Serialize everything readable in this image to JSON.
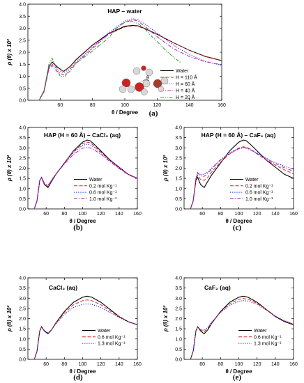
{
  "colors": {
    "water": "#000000",
    "red": "#d62728",
    "blue": "#1f1fd6",
    "magenta": "#b31fb3",
    "green": "#2a9a2a"
  },
  "chart_data": [
    {
      "panel": "(a)",
      "type": "line",
      "title": "HAP – water",
      "xlabel": "θ / Degree",
      "ylabel": "ρ (θ) x 10²",
      "xlim": [
        40,
        160
      ],
      "ylim": [
        0,
        4.0
      ],
      "xticks": [
        "60",
        "80",
        "100",
        "120",
        "140",
        "160"
      ],
      "yticks": [
        "0.0",
        "0.5",
        "1.0",
        "1.5",
        "2.0",
        "2.5",
        "3.0",
        "3.5",
        "4.0"
      ],
      "legend_position": "right",
      "inset": "water molecule image with θ angle",
      "series": [
        {
          "name": "Water",
          "color": "water",
          "dash": "solid",
          "x": [
            47,
            50,
            53,
            55,
            58,
            62,
            66,
            70,
            80,
            90,
            100,
            105,
            108,
            112,
            120,
            130,
            140,
            150,
            160
          ],
          "y": [
            0.0,
            0.4,
            1.4,
            1.6,
            1.4,
            1.2,
            1.4,
            1.7,
            2.3,
            2.78,
            3.08,
            3.12,
            3.1,
            3.0,
            2.75,
            2.4,
            2.08,
            1.82,
            1.65
          ]
        },
        {
          "name": "H = 110 Å",
          "color": "red",
          "dash": "dash",
          "x": [
            47,
            50,
            53,
            55,
            58,
            62,
            66,
            70,
            80,
            90,
            100,
            105,
            108,
            112,
            120,
            130,
            140,
            150,
            160
          ],
          "y": [
            0.0,
            0.4,
            1.4,
            1.58,
            1.38,
            1.2,
            1.38,
            1.68,
            2.28,
            2.75,
            3.05,
            3.1,
            3.08,
            2.98,
            2.74,
            2.4,
            2.08,
            1.83,
            1.66
          ]
        },
        {
          "name": "H = 60 Å",
          "color": "blue",
          "dash": "dot",
          "x": [
            47,
            50,
            53,
            55,
            58,
            62,
            66,
            70,
            80,
            90,
            100,
            105,
            108,
            112,
            120,
            130,
            140,
            150,
            160
          ],
          "y": [
            0.0,
            0.4,
            1.35,
            1.5,
            1.3,
            1.15,
            1.3,
            1.6,
            2.2,
            2.8,
            3.3,
            3.4,
            3.35,
            3.2,
            2.8,
            2.3,
            1.9,
            1.62,
            1.45
          ]
        },
        {
          "name": "H = 40 Å",
          "color": "magenta",
          "dash": "dashdot",
          "x": [
            47,
            50,
            53,
            55,
            58,
            62,
            66,
            70,
            80,
            90,
            100,
            105,
            108,
            112,
            120,
            130,
            140,
            150,
            160
          ],
          "y": [
            0.0,
            0.35,
            1.3,
            1.45,
            1.2,
            1.05,
            1.2,
            1.55,
            2.15,
            2.75,
            3.25,
            3.35,
            3.3,
            3.1,
            2.65,
            2.15,
            1.82,
            1.6,
            1.48
          ]
        },
        {
          "name": "H = 20 Å",
          "color": "green",
          "dash": "dashdotdot",
          "x": [
            47,
            50,
            53,
            55,
            57,
            60,
            63,
            66,
            70,
            80,
            90,
            95,
            100,
            104,
            108,
            112,
            116,
            120,
            125,
            130,
            135
          ],
          "y": [
            0.0,
            0.4,
            1.5,
            1.75,
            1.45,
            1.0,
            1.0,
            1.3,
            1.55,
            2.05,
            2.6,
            3.0,
            3.25,
            3.3,
            3.2,
            3.0,
            2.7,
            2.45,
            2.1,
            1.8,
            1.55
          ]
        }
      ]
    },
    {
      "panel": "(b)",
      "type": "line",
      "title": "HAP (H = 60 Å) – CaCl₂ (aq)",
      "xlabel": "θ / Degree",
      "ylabel": "ρ (θ) x 10²",
      "xlim": [
        40,
        160
      ],
      "ylim": [
        0,
        4.0
      ],
      "xticks": [
        "60",
        "80",
        "100",
        "120",
        "140",
        "160"
      ],
      "yticks": [
        "0.0",
        "0.5",
        "1.0",
        "1.5",
        "2.0",
        "2.5",
        "3.0",
        "3.5",
        "4.0"
      ],
      "legend_position": "bottom-right",
      "series": [
        {
          "name": "Water",
          "color": "water",
          "dash": "solid",
          "x": [
            47,
            50,
            53,
            55,
            58,
            62,
            66,
            70,
            80,
            90,
            100,
            105,
            108,
            112,
            120,
            130,
            140,
            150,
            160
          ],
          "y": [
            0.0,
            0.4,
            1.4,
            1.55,
            1.2,
            1.05,
            1.35,
            1.65,
            2.25,
            2.85,
            3.28,
            3.38,
            3.35,
            3.2,
            2.85,
            2.4,
            2.05,
            1.7,
            1.5
          ]
        },
        {
          "name": "0.2 mol Kg⁻¹",
          "color": "red",
          "dash": "dash",
          "x": [
            47,
            50,
            53,
            55,
            58,
            62,
            66,
            70,
            80,
            90,
            100,
            105,
            108,
            112,
            120,
            130,
            140,
            150,
            160
          ],
          "y": [
            0.0,
            0.4,
            1.4,
            1.55,
            1.22,
            1.08,
            1.38,
            1.66,
            2.25,
            2.82,
            3.2,
            3.28,
            3.25,
            3.12,
            2.8,
            2.38,
            2.03,
            1.7,
            1.5
          ]
        },
        {
          "name": "0.6 mol Kg⁻¹",
          "color": "blue",
          "dash": "dot",
          "x": [
            47,
            50,
            53,
            55,
            58,
            62,
            66,
            70,
            80,
            90,
            100,
            105,
            108,
            112,
            120,
            130,
            140,
            150,
            160
          ],
          "y": [
            0.0,
            0.4,
            1.4,
            1.55,
            1.25,
            1.12,
            1.4,
            1.68,
            2.25,
            2.78,
            3.12,
            3.18,
            3.15,
            3.05,
            2.75,
            2.35,
            2.0,
            1.7,
            1.5
          ]
        },
        {
          "name": "1.0 mol Kg⁻¹",
          "color": "magenta",
          "dash": "dashdot",
          "x": [
            47,
            50,
            53,
            55,
            58,
            62,
            66,
            70,
            80,
            90,
            100,
            105,
            108,
            112,
            120,
            130,
            140,
            150,
            160
          ],
          "y": [
            0.0,
            0.4,
            1.4,
            1.55,
            1.28,
            1.15,
            1.42,
            1.68,
            2.2,
            2.68,
            2.98,
            3.02,
            3.0,
            2.92,
            2.68,
            2.32,
            1.98,
            1.68,
            1.48
          ]
        }
      ]
    },
    {
      "panel": "(c)",
      "type": "line",
      "title": "HAP (H = 60 Å) – CaF₂ (aq)",
      "xlabel": "θ / Degree",
      "ylabel": "ρ (θ) x 10²",
      "xlim": [
        40,
        160
      ],
      "ylim": [
        0,
        4.0
      ],
      "xticks": [
        "60",
        "80",
        "100",
        "120",
        "140",
        "160"
      ],
      "yticks": [
        "0.0",
        "0.5",
        "1.0",
        "1.5",
        "2.0",
        "2.5",
        "3.0",
        "3.5",
        "4.0"
      ],
      "legend_position": "bottom-right",
      "series": [
        {
          "name": "Water",
          "color": "water",
          "dash": "solid",
          "x": [
            47,
            50,
            53,
            55,
            58,
            62,
            66,
            70,
            80,
            90,
            100,
            105,
            108,
            112,
            120,
            130,
            140,
            150,
            160
          ],
          "y": [
            0.0,
            0.4,
            1.4,
            1.55,
            1.2,
            1.05,
            1.35,
            1.65,
            2.25,
            2.85,
            3.28,
            3.38,
            3.35,
            3.2,
            2.85,
            2.4,
            2.05,
            1.7,
            1.5
          ]
        },
        {
          "name": "0.2 mol Kg⁻¹",
          "color": "red",
          "dash": "dash",
          "x": [
            47,
            50,
            53,
            55,
            58,
            62,
            66,
            70,
            80,
            90,
            100,
            105,
            108,
            112,
            120,
            130,
            140,
            150,
            160
          ],
          "y": [
            0.0,
            0.4,
            1.45,
            1.65,
            1.45,
            1.4,
            1.55,
            1.8,
            2.3,
            2.7,
            2.98,
            3.05,
            3.03,
            2.95,
            2.7,
            2.4,
            2.15,
            1.92,
            1.72
          ]
        },
        {
          "name": "0.6 mol Kg⁻¹",
          "color": "blue",
          "dash": "dot",
          "x": [
            47,
            50,
            53,
            55,
            58,
            62,
            66,
            70,
            80,
            90,
            100,
            105,
            108,
            112,
            120,
            130,
            140,
            150,
            160
          ],
          "y": [
            0.0,
            0.4,
            1.5,
            1.8,
            1.7,
            1.7,
            1.82,
            2.0,
            2.42,
            2.75,
            2.98,
            3.02,
            3.0,
            2.95,
            2.75,
            2.5,
            2.28,
            2.1,
            1.95
          ]
        },
        {
          "name": "1.0 mol Kg⁻¹",
          "color": "magenta",
          "dash": "dashdot",
          "x": [
            47,
            50,
            53,
            55,
            58,
            62,
            66,
            70,
            80,
            90,
            100,
            105,
            108,
            112,
            120,
            130,
            140,
            150,
            160
          ],
          "y": [
            0.0,
            0.4,
            1.5,
            1.75,
            1.62,
            1.6,
            1.75,
            1.95,
            2.4,
            2.72,
            2.95,
            3.0,
            2.98,
            2.92,
            2.72,
            2.45,
            2.22,
            2.02,
            1.85
          ]
        }
      ]
    },
    {
      "panel": "(d)",
      "type": "line",
      "title": "CaCl₂ (aq)",
      "xlabel": "θ / Degree",
      "ylabel": "ρ (θ) x 10²",
      "xlim": [
        40,
        160
      ],
      "ylim": [
        0,
        4.0
      ],
      "xticks": [
        "60",
        "80",
        "100",
        "120",
        "140",
        "160"
      ],
      "yticks": [
        "0.0",
        "0.5",
        "1.0",
        "1.5",
        "2.0",
        "2.5",
        "3.0",
        "3.5",
        "4.0"
      ],
      "legend_position": "bottom-right",
      "series": [
        {
          "name": "Water",
          "color": "water",
          "dash": "solid",
          "x": [
            47,
            50,
            53,
            55,
            58,
            62,
            66,
            70,
            80,
            90,
            100,
            105,
            110,
            120,
            130,
            140,
            150,
            160
          ],
          "y": [
            0.0,
            0.4,
            1.4,
            1.6,
            1.4,
            1.25,
            1.45,
            1.75,
            2.35,
            2.8,
            3.05,
            3.1,
            3.05,
            2.8,
            2.45,
            2.1,
            1.85,
            1.7
          ]
        },
        {
          "name": "0.6 mol Kg⁻¹",
          "color": "red",
          "dash": "dash",
          "x": [
            47,
            50,
            53,
            55,
            58,
            62,
            66,
            70,
            80,
            90,
            100,
            105,
            110,
            120,
            130,
            140,
            150,
            160
          ],
          "y": [
            0.0,
            0.4,
            1.4,
            1.6,
            1.42,
            1.28,
            1.46,
            1.73,
            2.28,
            2.68,
            2.88,
            2.92,
            2.88,
            2.68,
            2.38,
            2.08,
            1.85,
            1.7
          ]
        },
        {
          "name": "1.3 mol Kg⁻¹",
          "color": "blue",
          "dash": "dot",
          "x": [
            47,
            50,
            53,
            55,
            58,
            62,
            66,
            70,
            80,
            90,
            100,
            105,
            110,
            120,
            130,
            140,
            150,
            160
          ],
          "y": [
            0.0,
            0.4,
            1.4,
            1.58,
            1.42,
            1.3,
            1.46,
            1.7,
            2.2,
            2.55,
            2.7,
            2.72,
            2.7,
            2.55,
            2.3,
            2.05,
            1.83,
            1.7
          ]
        }
      ]
    },
    {
      "panel": "(e)",
      "type": "line",
      "title": "CaF₂ (aq)",
      "xlabel": "θ / Degree",
      "ylabel": "ρ (θ) x 10²",
      "xlim": [
        40,
        160
      ],
      "ylim": [
        0,
        4.0
      ],
      "xticks": [
        "60",
        "80",
        "100",
        "120",
        "140",
        "160"
      ],
      "yticks": [
        "0.0",
        "0.5",
        "1.0",
        "1.5",
        "2.0",
        "2.5",
        "3.0",
        "3.5",
        "4.0"
      ],
      "legend_position": "bottom-right",
      "series": [
        {
          "name": "Water",
          "color": "water",
          "dash": "solid",
          "x": [
            47,
            50,
            53,
            55,
            58,
            62,
            66,
            70,
            80,
            90,
            100,
            105,
            110,
            120,
            130,
            140,
            150,
            160
          ],
          "y": [
            0.0,
            0.4,
            1.4,
            1.6,
            1.4,
            1.25,
            1.45,
            1.75,
            2.35,
            2.8,
            3.05,
            3.1,
            3.05,
            2.8,
            2.45,
            2.1,
            1.85,
            1.7
          ]
        },
        {
          "name": "0.6 mol Kg⁻¹",
          "color": "red",
          "dash": "dash",
          "x": [
            47,
            50,
            53,
            55,
            58,
            62,
            66,
            70,
            80,
            90,
            100,
            105,
            110,
            120,
            130,
            140,
            150,
            160
          ],
          "y": [
            0.0,
            0.4,
            1.4,
            1.6,
            1.45,
            1.35,
            1.52,
            1.78,
            2.32,
            2.72,
            2.95,
            2.98,
            2.95,
            2.75,
            2.45,
            2.12,
            1.88,
            1.72
          ]
        },
        {
          "name": "1.3 mol Kg⁻¹",
          "color": "blue",
          "dash": "dot",
          "x": [
            47,
            50,
            53,
            55,
            58,
            62,
            66,
            70,
            80,
            90,
            100,
            105,
            110,
            120,
            130,
            140,
            150,
            160
          ],
          "y": [
            0.0,
            0.4,
            1.4,
            1.58,
            1.48,
            1.42,
            1.58,
            1.82,
            2.3,
            2.65,
            2.85,
            2.88,
            2.86,
            2.7,
            2.42,
            2.12,
            1.9,
            1.74
          ]
        }
      ]
    }
  ]
}
